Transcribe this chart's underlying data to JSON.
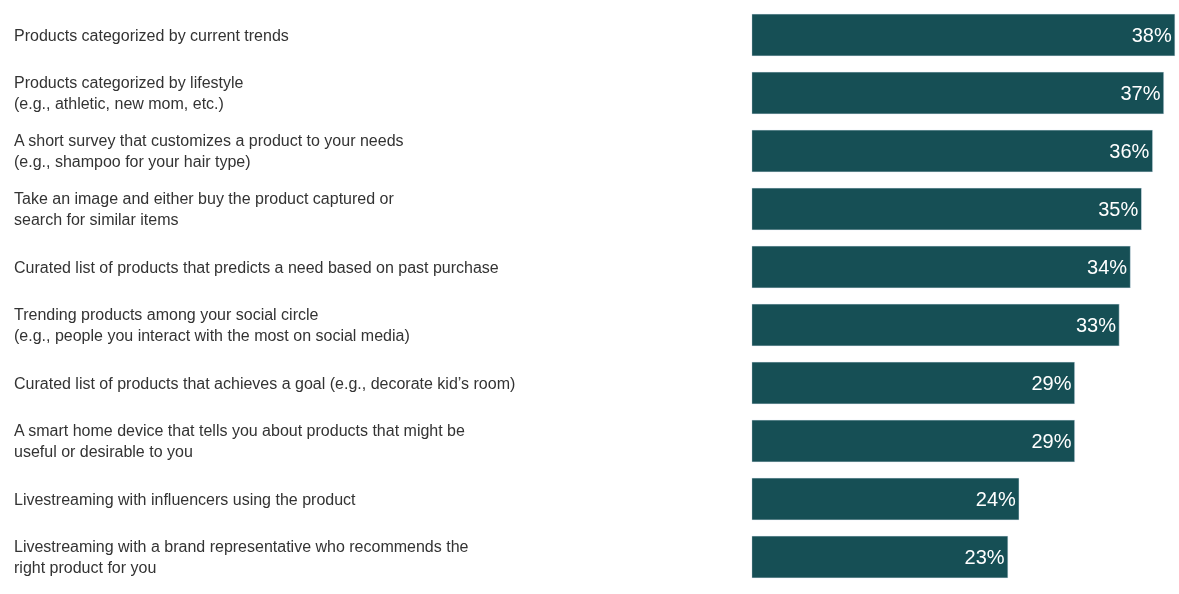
{
  "chart_data": {
    "type": "bar",
    "orientation": "horizontal",
    "value_labels": [
      "38%",
      "37%",
      "36%",
      "35%",
      "34%",
      "33%",
      "29%",
      "29%",
      "24%",
      "23%"
    ],
    "categories": [
      "Products categorized by current trends",
      "Products categorized by lifestyle\n(e.g., athletic, new mom, etc.)",
      "A short survey that customizes a product to your needs\n(e.g., shampoo for your hair type)",
      "Take an image and either buy the product captured or\nsearch for similar items",
      "Curated list of products that predicts a need based on past purchase",
      "Trending products among your social circle\n(e.g., people you interact with the most on social media)",
      "Curated list of products that achieves a goal (e.g., decorate kid’s room)",
      "A smart home device that tells you about products that might be\nuseful or desirable to you",
      "Livestreaming with influencers using the product",
      "Livestreaming with a brand representative who recommends the\nright product for you"
    ],
    "values": [
      38,
      37,
      36,
      35,
      34,
      33,
      29,
      29,
      24,
      23
    ],
    "color": "#164f55"
  }
}
